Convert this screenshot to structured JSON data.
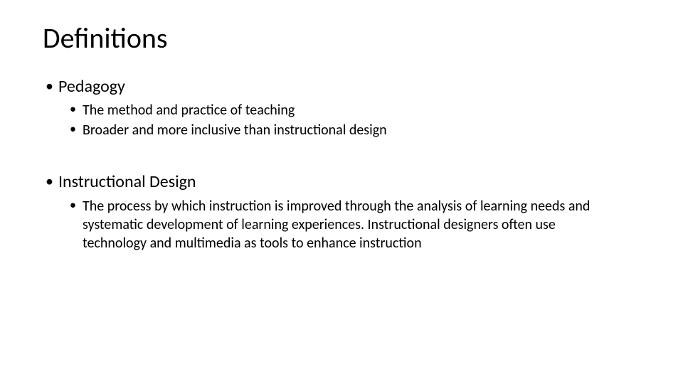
{
  "slide": {
    "title": "Definitions",
    "background_color": "#ffffff",
    "text_color": "#000000",
    "title_fontsize": 40,
    "level1_fontsize": 24,
    "level2_fontsize": 20,
    "font_family": "Calibri",
    "sections": [
      {
        "heading": "Pedagogy",
        "subitems": [
          "The method and practice of teaching",
          "Broader and more inclusive than instructional design"
        ]
      },
      {
        "heading": "Instructional Design",
        "subitems": [
          "The process by which instruction is improved through the analysis of learning needs and systematic development of learning experiences. Instructional designers often use technology and multimedia as tools to enhance instruction"
        ]
      }
    ]
  }
}
